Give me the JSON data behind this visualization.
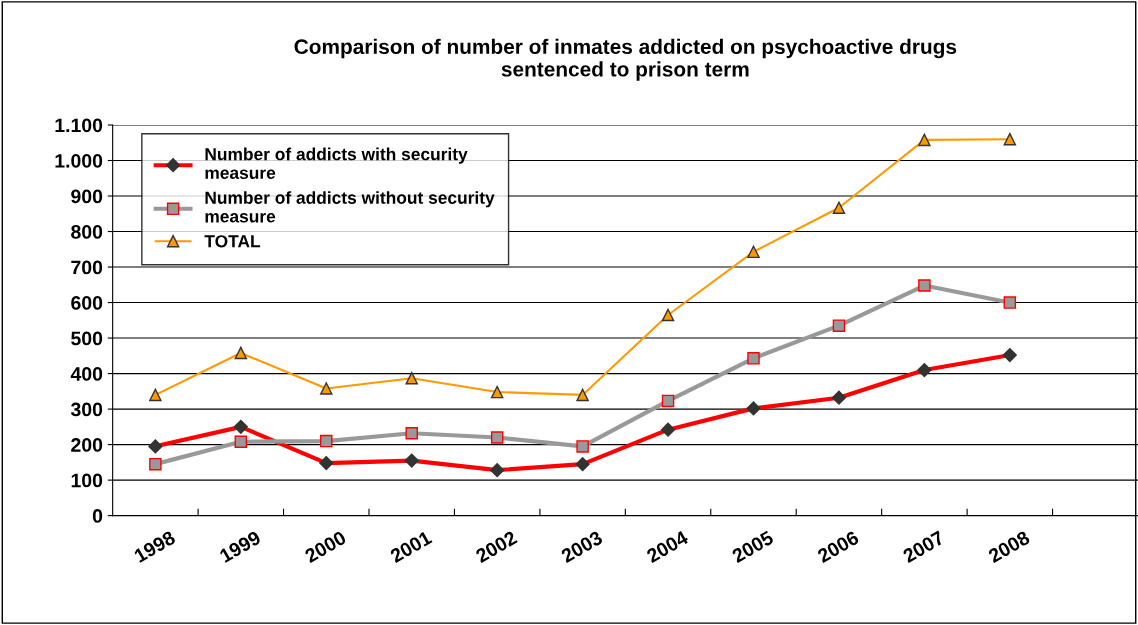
{
  "chart_data": {
    "type": "line",
    "title": "Comparison of number of inmates addicted on psychoactive drugs\nsentenced to prison term",
    "categories": [
      "1998",
      "1999",
      "2000",
      "2001",
      "2002",
      "2003",
      "2004",
      "2005",
      "2006",
      "2007",
      "2008",
      null
    ],
    "series": [
      {
        "name": "Number of addicts with security\nmeasure",
        "color": "#ff0000",
        "marker": "diamond",
        "values": [
          195,
          250,
          148,
          155,
          128,
          145,
          242,
          302,
          332,
          410,
          452,
          null
        ]
      },
      {
        "name": "Number of addicts without security\nmeasure",
        "color": "#999999",
        "marker": "square",
        "values": [
          145,
          208,
          210,
          232,
          220,
          195,
          323,
          443,
          535,
          648,
          600,
          null
        ]
      },
      {
        "name": "TOTAL",
        "color": "#ff9900",
        "marker": "triangle",
        "values": [
          340,
          458,
          358,
          387,
          348,
          340,
          565,
          743,
          867,
          1058,
          1060,
          null
        ]
      }
    ],
    "ylim": [
      0,
      1100
    ],
    "yticks": [
      0,
      100,
      200,
      300,
      400,
      500,
      600,
      700,
      800,
      900,
      {
        "value": 1000,
        "label": "1.000"
      },
      {
        "value": 1100,
        "label": "1.100"
      }
    ],
    "grid": "y",
    "legend": "top left"
  }
}
